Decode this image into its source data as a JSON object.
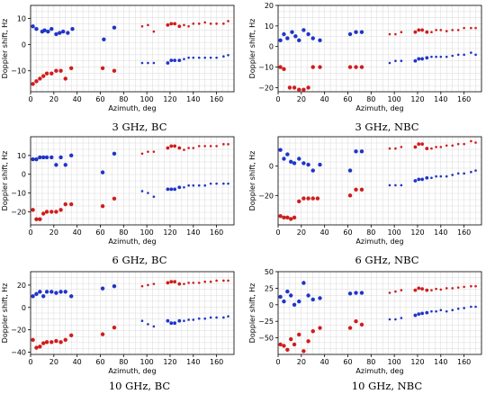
{
  "figure": {
    "colors": {
      "blue_series": "#1f35c8",
      "red_series": "#d01c1c",
      "grid": "#d9d9d9",
      "axis": "#000000"
    }
  },
  "chart_data": [
    {
      "type": "scatter",
      "caption": "3 GHz, BC",
      "xlabel": "Azimuth, deg",
      "ylabel": "Doppler shift, Hz",
      "xlim": [
        0,
        175
      ],
      "ylim": [
        -18,
        15
      ],
      "xticks": [
        "0",
        "20",
        "40",
        "60",
        "80",
        "100",
        "120",
        "140",
        "160"
      ],
      "yticks": [
        "−10",
        "0",
        "10"
      ],
      "grid": true,
      "series": [
        {
          "color": "blue",
          "x": [
            2,
            5,
            10,
            12,
            15,
            18,
            22,
            25,
            28,
            32,
            36,
            63,
            72,
            96,
            101,
            106,
            118,
            121,
            124,
            128,
            132,
            136,
            140,
            145,
            150,
            155,
            160,
            166,
            170
          ],
          "y": [
            7,
            6,
            5,
            5.5,
            5,
            6,
            4,
            4.5,
            5,
            4.5,
            6,
            2,
            6.5,
            -7,
            -7,
            -7,
            -7,
            -6,
            -6,
            -6,
            -5.5,
            -5,
            -5,
            -5,
            -5,
            -5,
            -5,
            -4.5,
            -4
          ]
        },
        {
          "color": "red",
          "x": [
            2,
            5,
            8,
            11,
            14,
            18,
            22,
            26,
            30,
            35,
            62,
            72,
            96,
            101,
            106,
            118,
            121,
            124,
            128,
            132,
            136,
            140,
            145,
            150,
            155,
            160,
            166,
            170
          ],
          "y": [
            -15,
            -14,
            -13,
            -12,
            -11,
            -11,
            -10,
            -10,
            -13,
            -9,
            -9,
            -10,
            7,
            7.5,
            5,
            7.5,
            8,
            8,
            7,
            7.5,
            7,
            8,
            8,
            8.5,
            8,
            8,
            8,
            9
          ]
        }
      ]
    },
    {
      "type": "scatter",
      "caption": "3 GHz, NBC",
      "xlabel": "Azimuth, deg",
      "ylabel": "Doppler shift, Hz",
      "xlim": [
        0,
        175
      ],
      "ylim": [
        -22,
        20
      ],
      "xticks": [
        "0",
        "20",
        "40",
        "60",
        "80",
        "100",
        "120",
        "140",
        "160"
      ],
      "yticks": [
        "−20",
        "−10",
        "0",
        "10",
        "20"
      ],
      "grid": true,
      "series": [
        {
          "color": "blue",
          "x": [
            2,
            5,
            8,
            12,
            15,
            18,
            22,
            26,
            30,
            36,
            62,
            67,
            72,
            96,
            101,
            106,
            118,
            121,
            124,
            128,
            132,
            136,
            140,
            145,
            150,
            155,
            160,
            166,
            170
          ],
          "y": [
            3,
            6,
            4,
            7,
            5,
            3,
            8,
            6,
            4,
            3,
            6,
            7,
            7,
            -8,
            -7,
            -7,
            -7,
            -6,
            -6,
            -5.5,
            -5,
            -5,
            -5,
            -5,
            -4.5,
            -4,
            -4,
            -3,
            -4
          ]
        },
        {
          "color": "red",
          "x": [
            2,
            5,
            10,
            14,
            18,
            22,
            26,
            30,
            36,
            62,
            67,
            72,
            96,
            101,
            106,
            118,
            121,
            124,
            128,
            132,
            136,
            140,
            145,
            150,
            155,
            160,
            166,
            170
          ],
          "y": [
            -10,
            -11,
            -20,
            -20,
            -21,
            -21,
            -20,
            -10,
            -10,
            -10,
            -10,
            -10,
            6,
            6,
            7,
            7,
            8,
            8,
            7,
            7,
            8,
            8,
            7.5,
            8,
            8,
            9,
            9,
            9
          ]
        }
      ]
    },
    {
      "type": "scatter",
      "caption": "6 GHz, BC",
      "xlabel": "Azimuth, deg",
      "ylabel": "Doppler shift, Hz",
      "xlim": [
        0,
        175
      ],
      "ylim": [
        -27,
        20
      ],
      "xticks": [
        "0",
        "20",
        "40",
        "60",
        "80",
        "100",
        "120",
        "140",
        "160"
      ],
      "yticks": [
        "−20",
        "−10",
        "0",
        "10"
      ],
      "grid": true,
      "series": [
        {
          "color": "blue",
          "x": [
            2,
            5,
            8,
            11,
            14,
            18,
            22,
            26,
            30,
            35,
            62,
            72,
            96,
            101,
            106,
            118,
            121,
            124,
            128,
            132,
            136,
            140,
            145,
            150,
            155,
            160,
            166,
            170
          ],
          "y": [
            8,
            8,
            9,
            9,
            9,
            9,
            5,
            9,
            5,
            10,
            1,
            11,
            -9,
            -10,
            -12,
            -8,
            -8,
            -8,
            -7,
            -7,
            -6,
            -6,
            -6,
            -6,
            -5,
            -5,
            -5,
            -5
          ]
        },
        {
          "color": "red",
          "x": [
            2,
            5,
            8,
            11,
            14,
            18,
            22,
            26,
            30,
            35,
            62,
            72,
            96,
            101,
            106,
            118,
            121,
            124,
            128,
            132,
            136,
            140,
            145,
            150,
            155,
            160,
            166,
            170
          ],
          "y": [
            -19,
            -24,
            -24,
            -21,
            -20,
            -20,
            -20,
            -19,
            -16,
            -16,
            -17,
            -13,
            11,
            12,
            12,
            14,
            15,
            15,
            14,
            13,
            14,
            14,
            15,
            15,
            15,
            15,
            16,
            16
          ]
        }
      ]
    },
    {
      "type": "scatter",
      "caption": "6 GHz, NBC",
      "xlabel": "Azimuth, deg",
      "ylabel": "Doppler shift, Hz",
      "xlim": [
        0,
        175
      ],
      "ylim": [
        -40,
        20
      ],
      "xticks": [
        "0",
        "20",
        "40",
        "60",
        "80",
        "100",
        "120",
        "140",
        "160"
      ],
      "yticks": [
        "−20",
        "0"
      ],
      "grid": true,
      "series": [
        {
          "color": "blue",
          "x": [
            2,
            5,
            8,
            11,
            14,
            18,
            22,
            26,
            30,
            36,
            62,
            67,
            72,
            96,
            101,
            106,
            118,
            121,
            124,
            128,
            132,
            136,
            140,
            145,
            150,
            155,
            160,
            166,
            170
          ],
          "y": [
            11,
            5,
            8,
            3,
            2,
            5,
            2,
            1,
            -3,
            1,
            -3,
            10,
            10,
            -13,
            -13,
            -13,
            -10,
            -9,
            -9,
            -8,
            -8,
            -7,
            -7,
            -7,
            -6,
            -5,
            -5,
            -4,
            -3
          ]
        },
        {
          "color": "red",
          "x": [
            2,
            5,
            8,
            11,
            14,
            18,
            22,
            26,
            30,
            34,
            62,
            67,
            72,
            96,
            101,
            106,
            118,
            121,
            124,
            128,
            132,
            136,
            140,
            145,
            150,
            155,
            160,
            166,
            170
          ],
          "y": [
            -34,
            -35,
            -35,
            -36,
            -35,
            -24,
            -22,
            -22,
            -22,
            -22,
            -20,
            -16,
            -16,
            12,
            12,
            13,
            13,
            15,
            15,
            12,
            12,
            13,
            13,
            14,
            14,
            15,
            15,
            17,
            16
          ]
        }
      ]
    },
    {
      "type": "scatter",
      "caption": "10 GHz, BC",
      "xlabel": "Azimuth, deg",
      "ylabel": "Doppler shift, Hz",
      "xlim": [
        0,
        175
      ],
      "ylim": [
        -42,
        32
      ],
      "xticks": [
        "0",
        "20",
        "40",
        "60",
        "80",
        "100",
        "120",
        "140",
        "160"
      ],
      "yticks": [
        "−40",
        "−20",
        "0",
        "20"
      ],
      "grid": true,
      "series": [
        {
          "color": "blue",
          "x": [
            2,
            5,
            8,
            11,
            14,
            18,
            22,
            26,
            30,
            35,
            62,
            72,
            96,
            101,
            106,
            118,
            121,
            124,
            128,
            132,
            136,
            140,
            145,
            150,
            155,
            160,
            166,
            170
          ],
          "y": [
            10,
            12,
            14,
            10,
            14,
            14,
            13,
            14,
            14,
            10,
            17,
            19,
            -12,
            -15,
            -17,
            -12,
            -14,
            -14,
            -12,
            -12,
            -11,
            -11,
            -10,
            -10,
            -9,
            -9,
            -9,
            -8
          ]
        },
        {
          "color": "red",
          "x": [
            2,
            5,
            8,
            11,
            14,
            18,
            22,
            26,
            30,
            35,
            62,
            72,
            96,
            101,
            106,
            118,
            121,
            124,
            128,
            132,
            136,
            140,
            145,
            150,
            155,
            160,
            166,
            170
          ],
          "y": [
            -29,
            -36,
            -35,
            -32,
            -31,
            -31,
            -30,
            -31,
            -29,
            -25,
            -24,
            -18,
            19,
            20,
            21,
            22,
            23,
            23,
            21,
            21,
            22,
            22,
            22,
            23,
            23,
            24,
            24,
            24
          ]
        }
      ]
    },
    {
      "type": "scatter",
      "caption": "10 GHz, NBC",
      "xlabel": "Azimuth, deg",
      "ylabel": "Doppler shift, Hz",
      "xlim": [
        0,
        175
      ],
      "ylim": [
        -75,
        50
      ],
      "xticks": [
        "0",
        "20",
        "40",
        "60",
        "80",
        "100",
        "120",
        "140",
        "160"
      ],
      "yticks": [
        "−50",
        "−25",
        "0",
        "25",
        "50"
      ],
      "grid": true,
      "series": [
        {
          "color": "blue",
          "x": [
            2,
            5,
            8,
            11,
            14,
            18,
            22,
            26,
            30,
            36,
            62,
            67,
            72,
            96,
            101,
            106,
            118,
            121,
            124,
            128,
            132,
            136,
            140,
            145,
            150,
            155,
            160,
            166,
            170
          ],
          "y": [
            12,
            5,
            20,
            14,
            0,
            5,
            33,
            14,
            8,
            10,
            17,
            18,
            18,
            -22,
            -22,
            -20,
            -16,
            -14,
            -13,
            -12,
            -10,
            -10,
            -8,
            -10,
            -8,
            -6,
            -5,
            -3,
            -3
          ]
        },
        {
          "color": "red",
          "x": [
            2,
            5,
            8,
            11,
            14,
            18,
            22,
            26,
            30,
            36,
            62,
            67,
            72,
            96,
            101,
            106,
            118,
            121,
            124,
            128,
            132,
            136,
            140,
            145,
            150,
            155,
            160,
            166,
            170
          ],
          "y": [
            -60,
            -62,
            -68,
            -52,
            -60,
            -45,
            -70,
            -55,
            -40,
            -35,
            -35,
            -25,
            -30,
            18,
            20,
            22,
            22,
            25,
            24,
            22,
            22,
            24,
            23,
            25,
            25,
            26,
            27,
            28,
            28
          ]
        }
      ]
    }
  ]
}
